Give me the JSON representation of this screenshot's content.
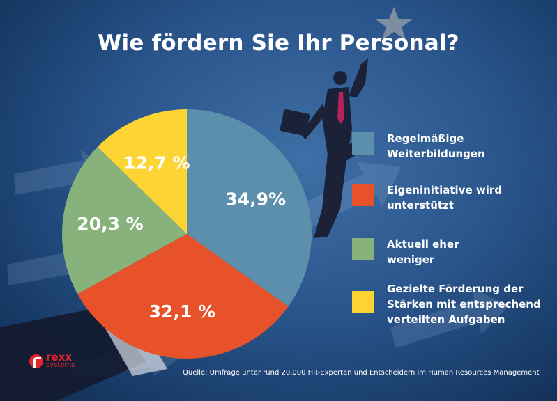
{
  "title": "Wie fördern Sie Ihr Personal?",
  "chart_data": {
    "type": "pie",
    "title": "Wie fördern Sie Ihr Personal?",
    "slices": [
      {
        "label": "Regelmäßige Weiterbildungen",
        "value": 34.9,
        "value_label": "34,9%",
        "color": "#5b8fab"
      },
      {
        "label": "Eigeninitiative wird unterstützt",
        "value": 32.1,
        "value_label": "32,1 %",
        "color": "#e8522a"
      },
      {
        "label": "Aktuell eher weniger",
        "value": 20.3,
        "value_label": "20,3 %",
        "color": "#87b27c"
      },
      {
        "label": "Gezielte Förderung der Stärken mit entsprechend verteilten Aufgaben",
        "value": 12.7,
        "value_label": "12,7 %",
        "color": "#fcd535"
      }
    ],
    "start_angle": "12 o'clock",
    "direction": "clockwise",
    "legend_position": "right"
  },
  "legend": [
    {
      "line1": "Regelmäßige",
      "line2": "Weiterbildungen",
      "line3": ""
    },
    {
      "line1": "Eigeninitiative wird",
      "line2": "unterstützt",
      "line3": ""
    },
    {
      "line1": "Aktuell eher",
      "line2": "weniger",
      "line3": ""
    },
    {
      "line1": "Gezielte Förderung der",
      "line2": "Stärken mit entsprechend",
      "line3": "verteilten Aufgaben"
    }
  ],
  "source": "Quelle: Umfrage unter rund 20.000 HR-Experten und Entscheidern im Human Resources Management",
  "logo": {
    "word": "rexx",
    "sub": "systems",
    "color": "#e3242b"
  },
  "icons": [
    "star-icon",
    "businessman-illustration",
    "arrow-icon",
    "rexx-logo-icon"
  ]
}
